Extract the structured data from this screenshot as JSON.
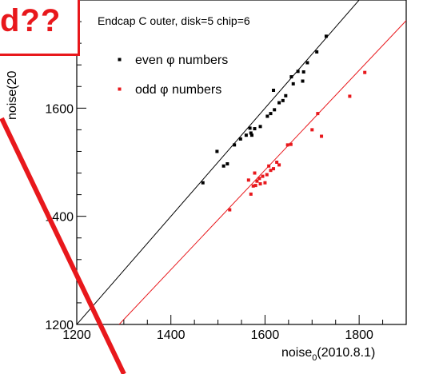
{
  "chart_data": {
    "type": "scatter",
    "title": "Endcap C outer, disk=5 chip=6",
    "xlabel_base": "noise",
    "xlabel_sub": "0",
    "xlabel_tail": "(2010.8.1)",
    "ylabel": "noise(20",
    "xlim": [
      1200,
      1900
    ],
    "ylim": [
      1200,
      1800
    ],
    "xticks": [
      1200,
      1400,
      1600,
      1800
    ],
    "yticks": [
      1200,
      1400,
      1600
    ],
    "ytick_labels": [
      "1200",
      "1400",
      "1600"
    ],
    "xtick_labels": [
      "1200",
      "1400",
      "1600",
      "1800"
    ],
    "grid": false,
    "legend_placement": "top-left",
    "reference_lines": [
      {
        "name": "diagonal",
        "color": "#000000",
        "points": [
          [
            1200,
            1200
          ],
          [
            1900,
            1900
          ]
        ]
      },
      {
        "name": "fit",
        "color": "#e8181c",
        "points": [
          [
            1290,
            1200
          ],
          [
            1900,
            1762
          ]
        ]
      }
    ],
    "series": [
      {
        "name": "even φ numbers",
        "color": "#000000",
        "points": [
          [
            1468,
            1462
          ],
          [
            1498,
            1520
          ],
          [
            1512,
            1493
          ],
          [
            1520,
            1497
          ],
          [
            1535,
            1532
          ],
          [
            1548,
            1543
          ],
          [
            1560,
            1550
          ],
          [
            1568,
            1563
          ],
          [
            1570,
            1554
          ],
          [
            1572,
            1550
          ],
          [
            1578,
            1562
          ],
          [
            1590,
            1566
          ],
          [
            1605,
            1585
          ],
          [
            1612,
            1590
          ],
          [
            1618,
            1633
          ],
          [
            1620,
            1597
          ],
          [
            1630,
            1610
          ],
          [
            1638,
            1614
          ],
          [
            1644,
            1623
          ],
          [
            1656,
            1658
          ],
          [
            1660,
            1645
          ],
          [
            1670,
            1668
          ],
          [
            1680,
            1650
          ],
          [
            1682,
            1667
          ],
          [
            1690,
            1684
          ],
          [
            1710,
            1704
          ],
          [
            1730,
            1733
          ]
        ]
      },
      {
        "name": "odd φ numbers",
        "color": "#e8181c",
        "points": [
          [
            1525,
            1412
          ],
          [
            1565,
            1467
          ],
          [
            1570,
            1441
          ],
          [
            1575,
            1456
          ],
          [
            1578,
            1480
          ],
          [
            1580,
            1457
          ],
          [
            1583,
            1465
          ],
          [
            1588,
            1470
          ],
          [
            1590,
            1460
          ],
          [
            1595,
            1474
          ],
          [
            1600,
            1462
          ],
          [
            1604,
            1477
          ],
          [
            1608,
            1493
          ],
          [
            1612,
            1485
          ],
          [
            1618,
            1488
          ],
          [
            1625,
            1500
          ],
          [
            1630,
            1495
          ],
          [
            1648,
            1532
          ],
          [
            1655,
            1533
          ],
          [
            1700,
            1560
          ],
          [
            1712,
            1590
          ],
          [
            1720,
            1548
          ],
          [
            1780,
            1622
          ],
          [
            1812,
            1666
          ]
        ]
      }
    ]
  },
  "overlay": {
    "box_text": "d??",
    "color": "#e8181c"
  }
}
